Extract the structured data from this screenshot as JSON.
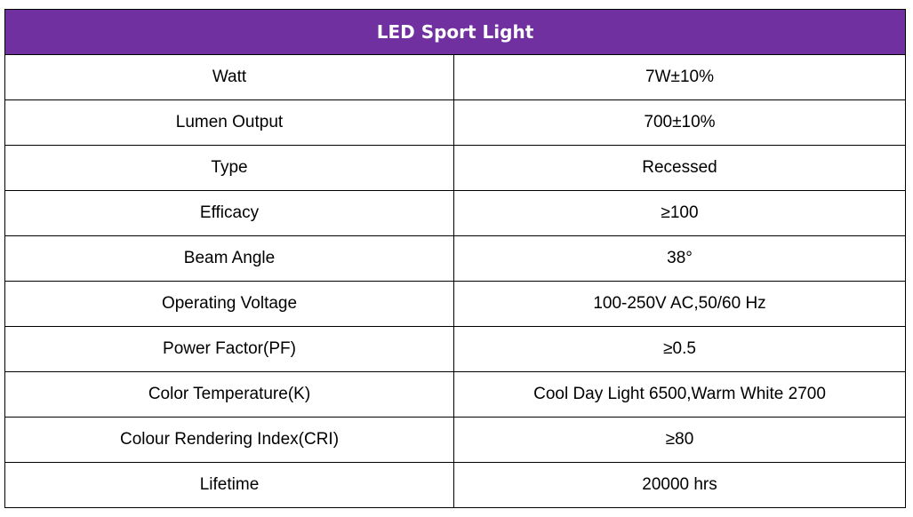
{
  "table": {
    "title": "LED Sport Light",
    "header_color": "#7030a0",
    "rows": [
      {
        "label": "Watt",
        "value": "7W±10%"
      },
      {
        "label": "Lumen Output",
        "value": "700±10%"
      },
      {
        "label": "Type",
        "value": "Recessed"
      },
      {
        "label": "Efficacy",
        "value": "≥100"
      },
      {
        "label": "Beam Angle",
        "value": "38°"
      },
      {
        "label": "Operating Voltage",
        "value": "100-250V AC,50/60 Hz"
      },
      {
        "label": "Power Factor(PF)",
        "value": "≥0.5"
      },
      {
        "label": "Color Temperature(K)",
        "value": "Cool Day Light 6500,Warm White 2700"
      },
      {
        "label": "Colour Rendering Index(CRI)",
        "value": "≥80"
      },
      {
        "label": "Lifetime",
        "value": "20000 hrs"
      }
    ]
  }
}
